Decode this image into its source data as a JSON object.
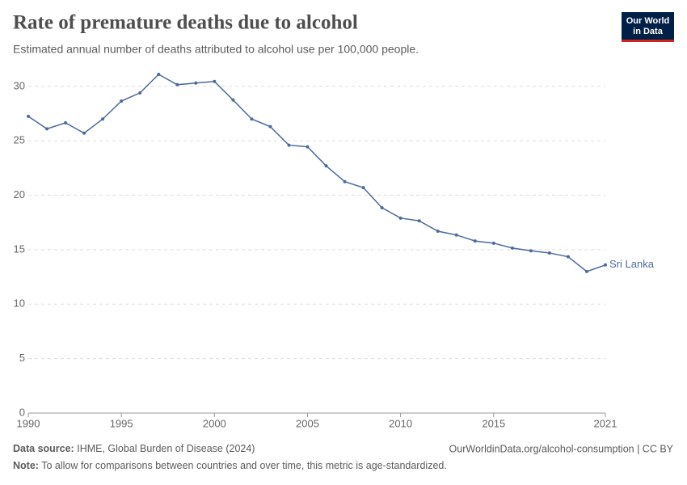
{
  "chart_data": {
    "type": "line",
    "title": "Rate of premature deaths due to alcohol",
    "subtitle": "Estimated annual number of deaths attributed to alcohol use per 100,000 people.",
    "logo": [
      "Our World",
      "in Data"
    ],
    "source_label": "Data source:",
    "source": "IHME, Global Burden of Disease (2024)",
    "url": "OurWorldinData.org/alcohol-consumption | CC BY",
    "note_label": "Note:",
    "note": "To allow for comparisons between countries and over time, this metric is age-standardized.",
    "x": [
      1990,
      1991,
      1992,
      1993,
      1994,
      1995,
      1996,
      1997,
      1998,
      1999,
      2000,
      2001,
      2002,
      2003,
      2004,
      2005,
      2006,
      2007,
      2008,
      2009,
      2010,
      2011,
      2012,
      2013,
      2014,
      2015,
      2016,
      2017,
      2018,
      2019,
      2020,
      2021
    ],
    "series": [
      {
        "name": "Sri Lanka",
        "color": "#4c6a9c",
        "values": [
          27.25,
          26.1,
          26.65,
          25.7,
          27.0,
          28.65,
          29.4,
          31.1,
          30.15,
          30.3,
          30.45,
          28.75,
          27.0,
          26.3,
          24.6,
          24.45,
          22.7,
          21.25,
          20.7,
          18.85,
          17.9,
          17.65,
          16.7,
          16.35,
          15.8,
          15.6,
          15.15,
          14.9,
          14.7,
          14.35,
          13.0,
          13.6
        ]
      }
    ],
    "xlim": [
      1990,
      2021
    ],
    "xticks": [
      1990,
      1995,
      2000,
      2005,
      2010,
      2015,
      2021
    ],
    "ylim": [
      0,
      31.1
    ],
    "yticks": [
      0,
      5,
      10,
      15,
      20,
      25,
      30
    ],
    "grid": true
  }
}
